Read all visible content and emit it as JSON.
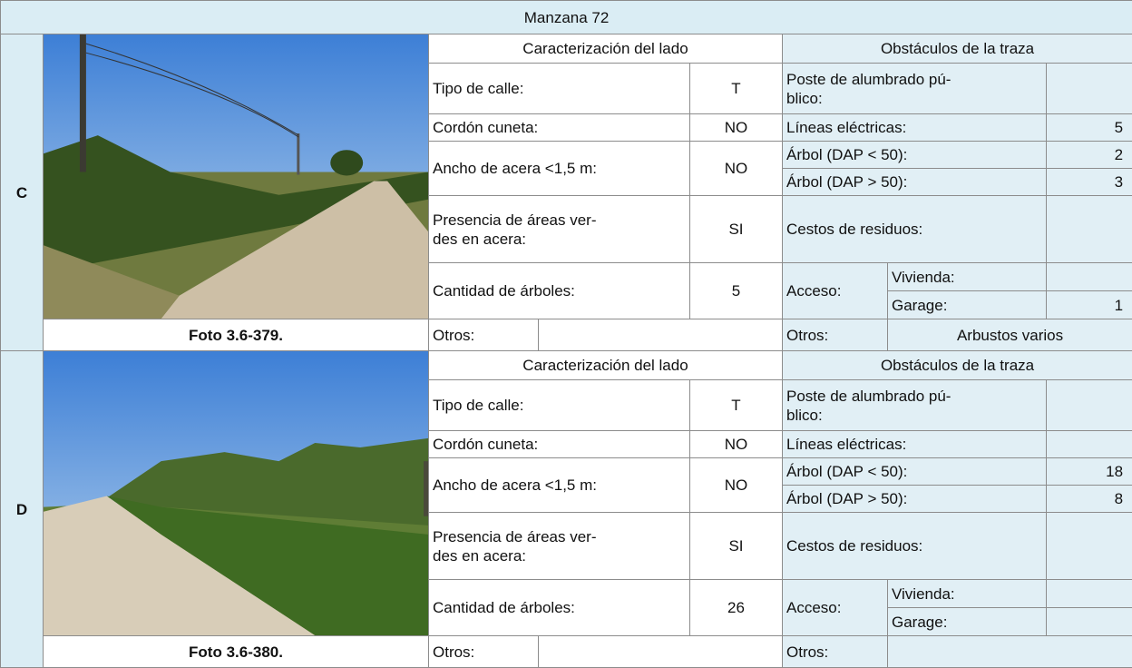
{
  "title": "Manzana 72",
  "sections": [
    {
      "side": "C",
      "photo_caption": "Foto 3.6-379.",
      "characterization": {
        "header": "Caracterización del lado",
        "street_type": {
          "label": "Tipo de calle:",
          "value": "T"
        },
        "curb": {
          "label": "Cordón cuneta:",
          "value": "NO"
        },
        "sidewalk_width": {
          "label": "Ancho de acera <1,5 m:",
          "value": "NO"
        },
        "green_areas": {
          "label": "Presencia de áreas ver-\ndes en acera:",
          "value": "SI"
        },
        "trees": {
          "label": "Cantidad de árboles:",
          "value": 5
        },
        "other": {
          "label": "Otros:"
        }
      },
      "obstacles": {
        "header": "Obstáculos de la traza",
        "light_pole": {
          "label": "Poste de alumbrado pú-\nblico:"
        },
        "power_lines": {
          "label": "Líneas eléctricas:",
          "value": 5
        },
        "tree_small": {
          "label": "Árbol (DAP < 50):",
          "value": 2
        },
        "tree_large": {
          "label": "Árbol (DAP > 50):",
          "value": 3
        },
        "waste_bins": {
          "label": "Cestos de residuos:"
        },
        "access": {
          "label": "Acceso:",
          "housing": {
            "label": "Vivienda:"
          },
          "garage": {
            "label": "Garage:",
            "value": 1
          }
        },
        "other": {
          "label": "Otros:",
          "value": "Arbustos varios"
        }
      }
    },
    {
      "side": "D",
      "photo_caption": "Foto 3.6-380.",
      "characterization": {
        "header": "Caracterización del lado",
        "street_type": {
          "label": "Tipo de calle:",
          "value": "T"
        },
        "curb": {
          "label": "Cordón cuneta:",
          "value": "NO"
        },
        "sidewalk_width": {
          "label": "Ancho de acera <1,5 m:",
          "value": "NO"
        },
        "green_areas": {
          "label": "Presencia de áreas ver-\ndes en acera:",
          "value": "SI"
        },
        "trees": {
          "label": "Cantidad de árboles:",
          "value": 26
        },
        "other": {
          "label": "Otros:"
        }
      },
      "obstacles": {
        "header": "Obstáculos de la traza",
        "light_pole": {
          "label": "Poste de alumbrado pú-\nblico:"
        },
        "power_lines": {
          "label": "Líneas eléctricas:"
        },
        "tree_small": {
          "label": "Árbol (DAP < 50):",
          "value": 18
        },
        "tree_large": {
          "label": "Árbol (DAP > 50):",
          "value": 8
        },
        "waste_bins": {
          "label": "Cestos de residuos:"
        },
        "access": {
          "label": "Acceso:",
          "housing": {
            "label": "Vivienda:"
          },
          "garage": {
            "label": "Garage:"
          }
        },
        "other": {
          "label": "Otros:"
        }
      }
    }
  ]
}
